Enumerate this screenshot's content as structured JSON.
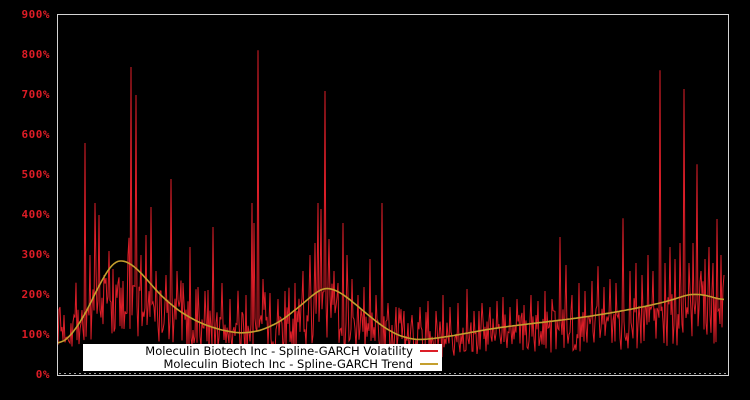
{
  "chart_data": {
    "type": "line",
    "title": "",
    "xlabel": "",
    "ylabel": "",
    "background": "#000000",
    "border_color": "#d4d4d4",
    "x_axis": {
      "tick_labels": [],
      "minor_ticks": true,
      "x_unit": "plot_px",
      "x_range": [
        0,
        666
      ]
    },
    "y_axis": {
      "min": 0,
      "max": 900,
      "step": 100,
      "tick_labels": [
        "900%",
        "800%",
        "700%",
        "600%",
        "500%",
        "400%",
        "300%",
        "200%",
        "100%",
        "0%"
      ],
      "label_color": "#dd1c26"
    },
    "legend_position": "bottom-center-inside",
    "series": [
      {
        "name": "Moleculin Biotech Inc - Spline-GARCH Volatility",
        "color": "#dc1e28",
        "style": "noisy-daily-volatility",
        "baseline_pct": [
          [
            0,
            105
          ],
          [
            10,
            115
          ],
          [
            25,
            130
          ],
          [
            45,
            150
          ],
          [
            60,
            160
          ],
          [
            75,
            165
          ],
          [
            90,
            150
          ],
          [
            110,
            135
          ],
          [
            135,
            115
          ],
          [
            160,
            105
          ],
          [
            185,
            100
          ],
          [
            210,
            105
          ],
          [
            235,
            115
          ],
          [
            255,
            140
          ],
          [
            265,
            160
          ],
          [
            275,
            145
          ],
          [
            290,
            120
          ],
          [
            310,
            105
          ],
          [
            330,
            95
          ],
          [
            355,
            85
          ],
          [
            380,
            85
          ],
          [
            410,
            90
          ],
          [
            440,
            95
          ],
          [
            470,
            100
          ],
          [
            500,
            105
          ],
          [
            530,
            110
          ],
          [
            560,
            118
          ],
          [
            590,
            128
          ],
          [
            620,
            140
          ],
          [
            645,
            150
          ],
          [
            666,
            150
          ]
        ],
        "noise": {
          "seed": 7,
          "low": 0.52,
          "span": 1.05,
          "burst_prob": 0.07,
          "burst_gain": 1.35
        },
        "spikes_pct": [
          [
            2,
            170
          ],
          [
            6,
            150
          ],
          [
            27,
            580
          ],
          [
            32,
            300
          ],
          [
            37,
            430
          ],
          [
            41,
            400
          ],
          [
            46,
            250
          ],
          [
            51,
            310
          ],
          [
            55,
            265
          ],
          [
            60,
            230
          ],
          [
            65,
            235
          ],
          [
            70,
            300
          ],
          [
            73,
            770
          ],
          [
            78,
            700
          ],
          [
            83,
            300
          ],
          [
            88,
            350
          ],
          [
            93,
            420
          ],
          [
            98,
            260
          ],
          [
            103,
            210
          ],
          [
            108,
            250
          ],
          [
            113,
            490
          ],
          [
            119,
            260
          ],
          [
            125,
            230
          ],
          [
            132,
            320
          ],
          [
            140,
            220
          ],
          [
            147,
            210
          ],
          [
            155,
            370
          ],
          [
            164,
            230
          ],
          [
            172,
            190
          ],
          [
            180,
            210
          ],
          [
            188,
            200
          ],
          [
            194,
            430
          ],
          [
            196,
            380
          ],
          [
            200,
            812
          ],
          [
            205,
            240
          ],
          [
            212,
            205
          ],
          [
            220,
            190
          ],
          [
            227,
            210
          ],
          [
            237,
            230
          ],
          [
            245,
            260
          ],
          [
            252,
            300
          ],
          [
            257,
            330
          ],
          [
            260,
            430
          ],
          [
            263,
            415
          ],
          [
            267,
            710
          ],
          [
            271,
            340
          ],
          [
            276,
            260
          ],
          [
            280,
            230
          ],
          [
            285,
            380
          ],
          [
            289,
            300
          ],
          [
            294,
            240
          ],
          [
            300,
            200
          ],
          [
            306,
            220
          ],
          [
            312,
            290
          ],
          [
            318,
            200
          ],
          [
            324,
            430
          ],
          [
            330,
            180
          ],
          [
            338,
            170
          ],
          [
            346,
            160
          ],
          [
            354,
            150
          ],
          [
            362,
            170
          ],
          [
            370,
            185
          ],
          [
            378,
            160
          ],
          [
            385,
            200
          ],
          [
            392,
            170
          ],
          [
            400,
            180
          ],
          [
            409,
            215
          ],
          [
            416,
            160
          ],
          [
            424,
            180
          ],
          [
            432,
            170
          ],
          [
            439,
            185
          ],
          [
            445,
            195
          ],
          [
            452,
            170
          ],
          [
            459,
            190
          ],
          [
            466,
            175
          ],
          [
            473,
            200
          ],
          [
            480,
            185
          ],
          [
            487,
            210
          ],
          [
            494,
            190
          ],
          [
            502,
            345
          ],
          [
            508,
            275
          ],
          [
            514,
            200
          ],
          [
            521,
            230
          ],
          [
            527,
            210
          ],
          [
            534,
            235
          ],
          [
            540,
            272
          ],
          [
            546,
            220
          ],
          [
            552,
            240
          ],
          [
            558,
            230
          ],
          [
            565,
            392
          ],
          [
            572,
            260
          ],
          [
            578,
            280
          ],
          [
            584,
            250
          ],
          [
            590,
            300
          ],
          [
            595,
            260
          ],
          [
            602,
            762
          ],
          [
            607,
            280
          ],
          [
            612,
            320
          ],
          [
            617,
            290
          ],
          [
            622,
            330
          ],
          [
            626,
            715
          ],
          [
            631,
            280
          ],
          [
            635,
            330
          ],
          [
            639,
            527
          ],
          [
            643,
            260
          ],
          [
            647,
            290
          ],
          [
            651,
            320
          ],
          [
            655,
            280
          ],
          [
            659,
            390
          ],
          [
            663,
            300
          ],
          [
            666,
            250
          ]
        ]
      },
      {
        "name": "Moleculin Biotech Inc - Spline-GARCH Trend",
        "color": "#c49f2e",
        "style": "smooth-spline",
        "points_pct": [
          [
            0,
            72
          ],
          [
            12,
            95
          ],
          [
            27,
            150
          ],
          [
            42,
            230
          ],
          [
            57,
            290
          ],
          [
            72,
            282
          ],
          [
            87,
            245
          ],
          [
            102,
            200
          ],
          [
            122,
            158
          ],
          [
            142,
            130
          ],
          [
            162,
            113
          ],
          [
            182,
            104
          ],
          [
            202,
            110
          ],
          [
            222,
            133
          ],
          [
            242,
            172
          ],
          [
            257,
            205
          ],
          [
            267,
            221
          ],
          [
            282,
            208
          ],
          [
            297,
            178
          ],
          [
            312,
            146
          ],
          [
            327,
            117
          ],
          [
            342,
            97
          ],
          [
            357,
            88
          ],
          [
            372,
            90
          ],
          [
            392,
            97
          ],
          [
            412,
            106
          ],
          [
            432,
            115
          ],
          [
            452,
            122
          ],
          [
            472,
            128
          ],
          [
            492,
            134
          ],
          [
            512,
            140
          ],
          [
            532,
            147
          ],
          [
            552,
            155
          ],
          [
            572,
            164
          ],
          [
            592,
            174
          ],
          [
            612,
            186
          ],
          [
            632,
            203
          ],
          [
            648,
            200
          ],
          [
            658,
            192
          ],
          [
            666,
            185
          ]
        ]
      }
    ]
  },
  "legend": {
    "items": [
      {
        "label": "Moleculin Biotech Inc - Spline-GARCH Volatility",
        "color": "#dc1e28"
      },
      {
        "label": "Moleculin Biotech Inc - Spline-GARCH Trend",
        "color": "#c49f2e"
      }
    ]
  }
}
